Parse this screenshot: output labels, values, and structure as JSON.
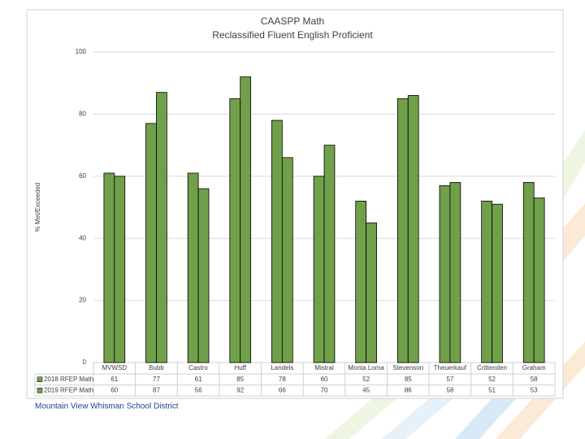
{
  "chart_data": {
    "type": "bar",
    "title": "CAASPP Math",
    "subtitle": "Reclassified Fluent English Proficient",
    "y_label": "% Met/Exceeded",
    "categories": [
      "MVWSD",
      "Bubb",
      "Castro",
      "Huff",
      "Landels",
      "Mistral",
      "Monta Loma",
      "Stevenson",
      "Theuerkauf",
      "Crittenden",
      "Graham"
    ],
    "series": [
      {
        "name": "2018 RFEP Math",
        "color": "#70a04a",
        "values": [
          61,
          77,
          61,
          85,
          78,
          60,
          52,
          85,
          57,
          52,
          58
        ]
      },
      {
        "name": "2019 RFEP Math",
        "color": "#70a04a",
        "values": [
          60,
          87,
          56,
          92,
          66,
          70,
          45,
          86,
          58,
          51,
          53
        ]
      }
    ],
    "ylim": [
      0,
      100
    ],
    "yticks": [
      0,
      20,
      40,
      60,
      80,
      100
    ],
    "grid": true,
    "footer": "Mountain View Whisman School District"
  }
}
